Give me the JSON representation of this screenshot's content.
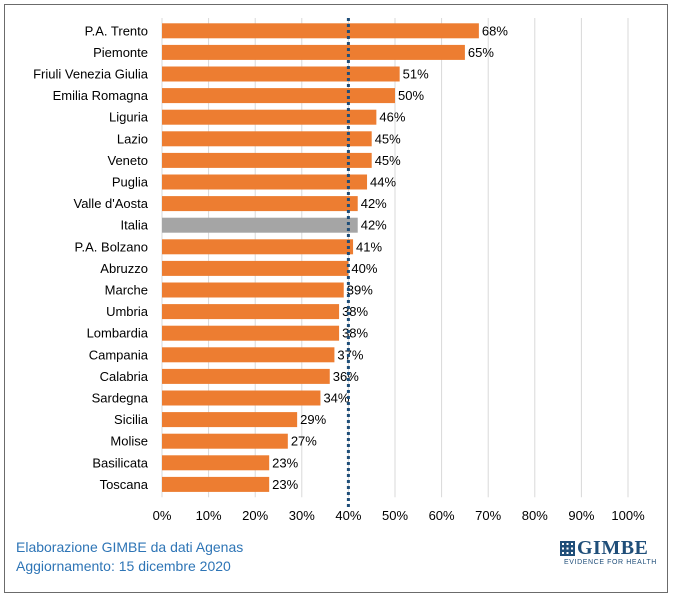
{
  "chart_data": {
    "type": "bar",
    "orientation": "horizontal",
    "categories": [
      "P.A. Trento",
      "Piemonte",
      "Friuli Venezia Giulia",
      "Emilia Romagna",
      "Liguria",
      "Lazio",
      "Veneto",
      "Puglia",
      "Valle d'Aosta",
      "Italia",
      "P.A. Bolzano",
      "Abruzzo",
      "Marche",
      "Umbria",
      "Lombardia",
      "Campania",
      "Calabria",
      "Sardegna",
      "Sicilia",
      "Molise",
      "Basilicata",
      "Toscana"
    ],
    "values": [
      68,
      65,
      51,
      50,
      46,
      45,
      45,
      44,
      42,
      42,
      41,
      40,
      39,
      38,
      38,
      37,
      36,
      34,
      29,
      27,
      23,
      23
    ],
    "value_labels": [
      "68%",
      "65%",
      "51%",
      "50%",
      "46%",
      "45%",
      "45%",
      "44%",
      "42%",
      "42%",
      "41%",
      "40%",
      "39%",
      "38%",
      "38%",
      "37%",
      "36%",
      "34%",
      "29%",
      "27%",
      "23%",
      "23%"
    ],
    "highlight_category": "Italia",
    "xlim": [
      0,
      100
    ],
    "x_ticks": [
      "0%",
      "10%",
      "20%",
      "30%",
      "40%",
      "50%",
      "60%",
      "70%",
      "80%",
      "90%",
      "100%"
    ],
    "reference_line": 40,
    "grid": "vertical",
    "legend": "none"
  },
  "colors": {
    "bar": "#ed7d31",
    "highlight_bar": "#a5a5a5",
    "reference_line": "#1f4e79",
    "grid": "#d9d9d9",
    "text": "#000000",
    "footer": "#2e75b6",
    "logo": "#1f4e79"
  },
  "footer": {
    "line1": "Elaborazione GIMBE da dati Agenas",
    "line2": "Aggiornamento: 15 dicembre 2020"
  },
  "logo": {
    "name": "GIMBE",
    "tagline": "EVIDENCE FOR HEALTH",
    "icon": "gimbe-grid-icon"
  }
}
